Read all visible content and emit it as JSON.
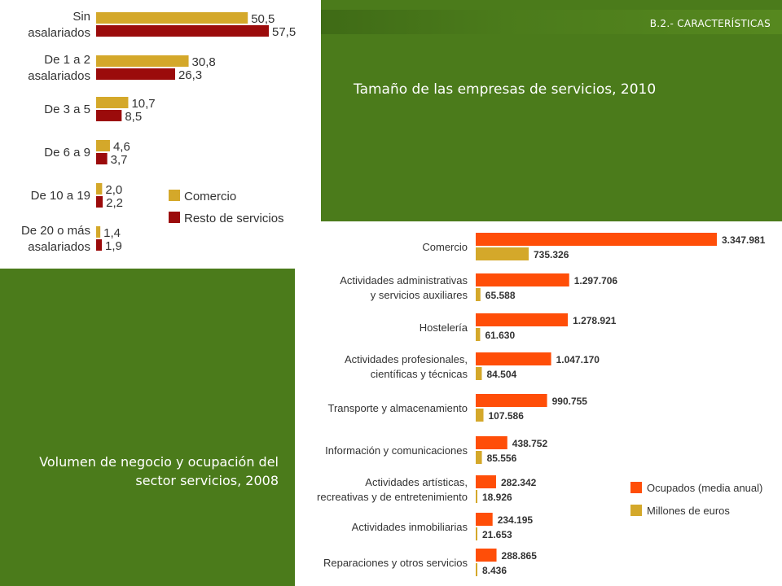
{
  "header": {
    "section_tag": "B.2.- CARACTERÍSTICAS",
    "title_top": "Tamaño de las empresas de servicios, 2010",
    "title_bottom": "Volumen de negocio y ocupación del sector servicios, 2008"
  },
  "colors": {
    "background_green": "#4b7b1b",
    "comercio": "#d4a82a",
    "resto_servicios": "#9b0b0b",
    "ocupados": "#ff4e08",
    "millones_euros": "#d4a82a"
  },
  "chart_data": [
    {
      "type": "bar",
      "orientation": "horizontal",
      "categories": [
        [
          "Sin",
          "asalariados"
        ],
        [
          "De 1 a 2",
          "asalariados"
        ],
        [
          "De 3 a 5"
        ],
        [
          "De 6 a 9"
        ],
        [
          "De 10 a 19"
        ],
        [
          "De 20 o más",
          "asalariados"
        ]
      ],
      "series": [
        {
          "name": "Comercio",
          "values": [
            50.5,
            30.8,
            10.7,
            4.6,
            2.0,
            1.4
          ],
          "labels": [
            "50,5",
            "30,8",
            "10,7",
            "4,6",
            "2,0",
            "1,4"
          ]
        },
        {
          "name": "Resto de servicios",
          "values": [
            57.5,
            26.3,
            8.5,
            3.7,
            2.2,
            1.9
          ],
          "labels": [
            "57,5",
            "26,3",
            "8,5",
            "3,7",
            "2,2",
            "1,9"
          ]
        }
      ],
      "xlim": [
        0,
        57.5
      ],
      "grid": false,
      "legend_position": "bottom-right"
    },
    {
      "type": "bar",
      "orientation": "horizontal",
      "categories": [
        [
          "Comercio"
        ],
        [
          "Actividades administrativas",
          "y servicios auxiliares"
        ],
        [
          "Hostelería"
        ],
        [
          "Actividades profesionales,",
          "científicas y técnicas"
        ],
        [
          "Transporte y almacenamiento"
        ],
        [
          "Información y comunicaciones"
        ],
        [
          "Actividades artísticas,",
          "recreativas y de entretenimiento"
        ],
        [
          "Actividades inmobiliarias"
        ],
        [
          "Reparaciones y otros servicios"
        ]
      ],
      "series": [
        {
          "name": "Ocupados (media anual)",
          "values": [
            3347981,
            1297706,
            1278921,
            1047170,
            990755,
            438752,
            282342,
            234195,
            288865
          ],
          "labels": [
            "3.347.981",
            "1.297.706",
            "1.278.921",
            "1.047.170",
            "990.755",
            "438.752",
            "282.342",
            "234.195",
            "288.865"
          ]
        },
        {
          "name": "Millones de euros",
          "values": [
            735326,
            65588,
            61630,
            84504,
            107586,
            85556,
            18926,
            21653,
            8436
          ],
          "labels": [
            "735.326",
            "65.588",
            "61.630",
            "84.504",
            "107.586",
            "85.556",
            "18.926",
            "21.653",
            "8.436"
          ]
        }
      ],
      "xlim": [
        0,
        3347981
      ],
      "grid": false,
      "legend_position": "bottom-right"
    }
  ]
}
